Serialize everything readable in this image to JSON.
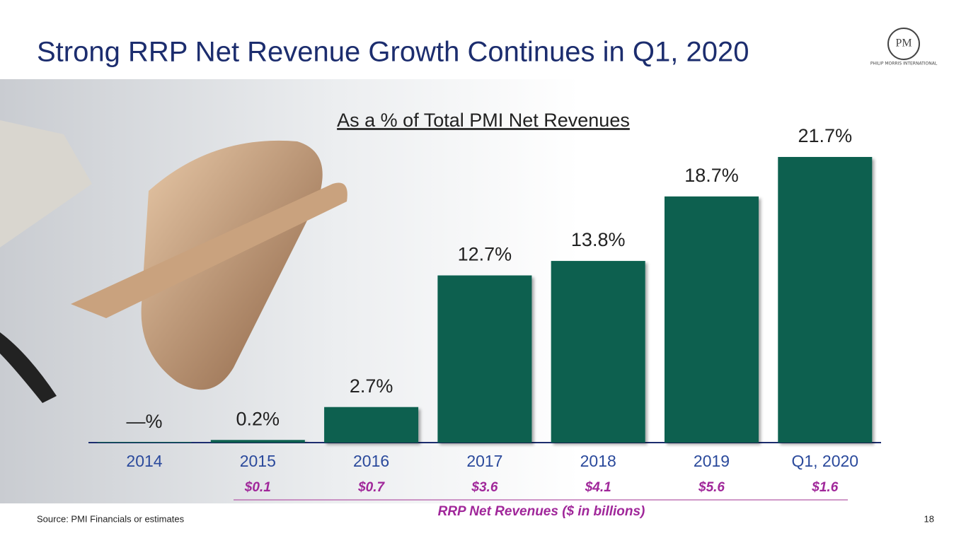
{
  "chart_data": {
    "type": "bar",
    "title": "Strong RRP Net Revenue Growth Continues in Q1, 2020",
    "subtitle": "As a % of Total PMI Net Revenues",
    "categories": [
      "2014",
      "2015",
      "2016",
      "2017",
      "2018",
      "2019",
      "Q1, 2020"
    ],
    "values": [
      0,
      0.2,
      2.7,
      12.7,
      13.8,
      18.7,
      21.7
    ],
    "value_labels": [
      "—%",
      "0.2%",
      "2.7%",
      "12.7%",
      "13.8%",
      "18.7%",
      "21.7%"
    ],
    "color": "#07604f",
    "revenue": {
      "title": "RRP Net Revenues ($ in billions)",
      "values": [
        null,
        0.1,
        0.7,
        3.6,
        4.1,
        5.6,
        1.6
      ],
      "value_labels": [
        null,
        "$0.1",
        "$0.7",
        "$3.6",
        "$4.1",
        "$5.6",
        "$1.6"
      ]
    },
    "source": "Source: PMI Financials or estimates",
    "page_number": "18",
    "logo_text": "PHILIP MORRIS INTERNATIONAL"
  }
}
